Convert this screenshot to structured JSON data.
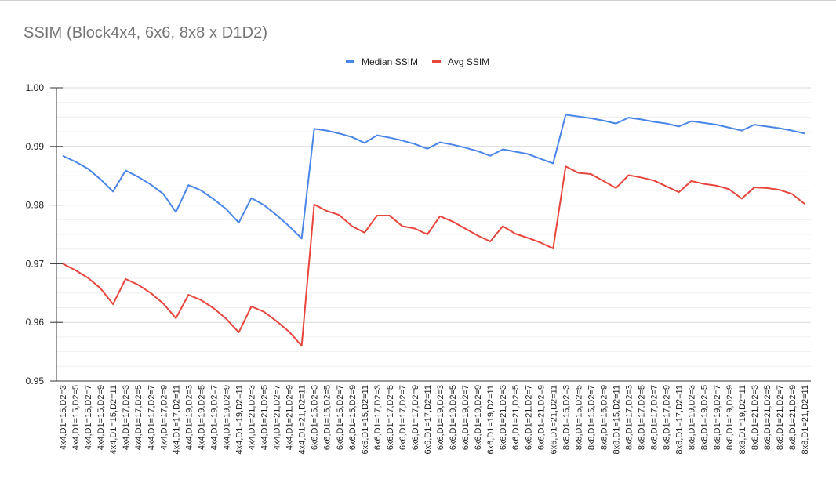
{
  "chart_data": {
    "type": "line",
    "title": "SSIM (Block4x4, 6x6, 8x8 x D1D2)",
    "xlabel": "",
    "ylabel": "",
    "ylim": [
      0.95,
      1.0
    ],
    "yticks": [
      "1.00",
      "0.99",
      "0.98",
      "0.97",
      "0.96",
      "0.95"
    ],
    "yticks_values": [
      1.0,
      0.99,
      0.98,
      0.97,
      0.96,
      0.95
    ],
    "legend_position": "top",
    "grid": true,
    "categories": [
      "4x4,D1=15,D2=3",
      "4x4,D1=15,D2=5",
      "4x4,D1=15,D2=7",
      "4x4,D1=15,D2=9",
      "4x4,D1=15,D2=11",
      "4x4,D1=17,D2=3",
      "4x4,D1=17,D2=5",
      "4x4,D1=17,D2=7",
      "4x4,D1=17,D2=9",
      "4x4,D1=17,D2=11",
      "4x4,D1=19,D2=3",
      "4x4,D1=19,D2=5",
      "4x4,D1=19,D2=7",
      "4x4,D1=19,D2=9",
      "4x4,D1=19,D2=11",
      "4x4,D1=21,D2=3",
      "4x4,D1=21,D2=5",
      "4x4,D1=21,D2=7",
      "4x4,D1=21,D2=9",
      "4x4,D1=21,D2=11",
      "6x6,D1=15,D2=3",
      "6x6,D1=15,D2=5",
      "6x6,D1=15,D2=7",
      "6x6,D1=15,D2=9",
      "6x6,D1=15,D2=11",
      "6x6,D1=17,D2=3",
      "6x6,D1=17,D2=5",
      "6x6,D1=17,D2=7",
      "6x6,D1=17,D2=9",
      "6x6,D1=17,D2=11",
      "6x6,D1=19,D2=3",
      "6x6,D1=19,D2=5",
      "6x6,D1=19,D2=7",
      "6x6,D1=19,D2=9",
      "6x6,D1=19,D2=11",
      "6x6,D1=21,D2=3",
      "6x6,D1=21,D2=5",
      "6x6,D1=21,D2=7",
      "6x6,D1=21,D2=9",
      "6x6,D1=21,D2=11",
      "8x8,D1=15,D2=3",
      "8x8,D1=15,D2=5",
      "8x8,D1=15,D2=7",
      "8x8,D1=15,D2=9",
      "8x8,D1=15,D2=11",
      "8x8,D1=17,D2=3",
      "8x8,D1=17,D2=5",
      "8x8,D1=17,D2=7",
      "8x8,D1=17,D2=9",
      "8x8,D1=17,D2=11",
      "8x8,D1=19,D2=3",
      "8x8,D1=19,D2=5",
      "8x8,D1=19,D2=7",
      "8x8,D1=19,D2=9",
      "8x8,D1=19,D2=11",
      "8x8,D1=21,D2=3",
      "8x8,D1=21,D2=5",
      "8x8,D1=21,D2=7",
      "8x8,D1=21,D2=9",
      "8x8,D1=21,D2=11"
    ],
    "series": [
      {
        "name": "Median SSIM",
        "color": "#4a86e8",
        "values": [
          0.9884,
          0.9874,
          0.9862,
          0.9844,
          0.9823,
          0.9859,
          0.9848,
          0.9835,
          0.9819,
          0.9788,
          0.9834,
          0.9825,
          0.981,
          0.9793,
          0.977,
          0.9812,
          0.98,
          0.9783,
          0.9764,
          0.9743,
          0.993,
          0.9927,
          0.9922,
          0.9916,
          0.9906,
          0.9919,
          0.9915,
          0.991,
          0.9904,
          0.9896,
          0.9907,
          0.9903,
          0.9898,
          0.9892,
          0.9884,
          0.9895,
          0.9891,
          0.9887,
          0.9879,
          0.9871,
          0.9954,
          0.9951,
          0.9948,
          0.9944,
          0.9939,
          0.9949,
          0.9946,
          0.9942,
          0.9939,
          0.9934,
          0.9943,
          0.994,
          0.9937,
          0.9932,
          0.9927,
          0.9937,
          0.9934,
          0.9931,
          0.9927,
          0.9922
        ]
      },
      {
        "name": "Avg SSIM",
        "color": "#e8453c",
        "values": [
          0.97,
          0.9689,
          0.9676,
          0.9658,
          0.9631,
          0.9674,
          0.9664,
          0.965,
          0.9632,
          0.9607,
          0.9647,
          0.9638,
          0.9624,
          0.9606,
          0.9583,
          0.9627,
          0.9618,
          0.9602,
          0.9584,
          0.956,
          0.9801,
          0.979,
          0.9783,
          0.9764,
          0.9753,
          0.9782,
          0.9782,
          0.9764,
          0.976,
          0.975,
          0.9781,
          0.9772,
          0.976,
          0.9748,
          0.9738,
          0.9764,
          0.9751,
          0.9744,
          0.9736,
          0.9726,
          0.9866,
          0.9855,
          0.9853,
          0.9841,
          0.9829,
          0.9851,
          0.9847,
          0.9842,
          0.9832,
          0.9822,
          0.9841,
          0.9836,
          0.9833,
          0.9827,
          0.9811,
          0.983,
          0.9829,
          0.9826,
          0.9819,
          0.9802
        ]
      }
    ]
  }
}
